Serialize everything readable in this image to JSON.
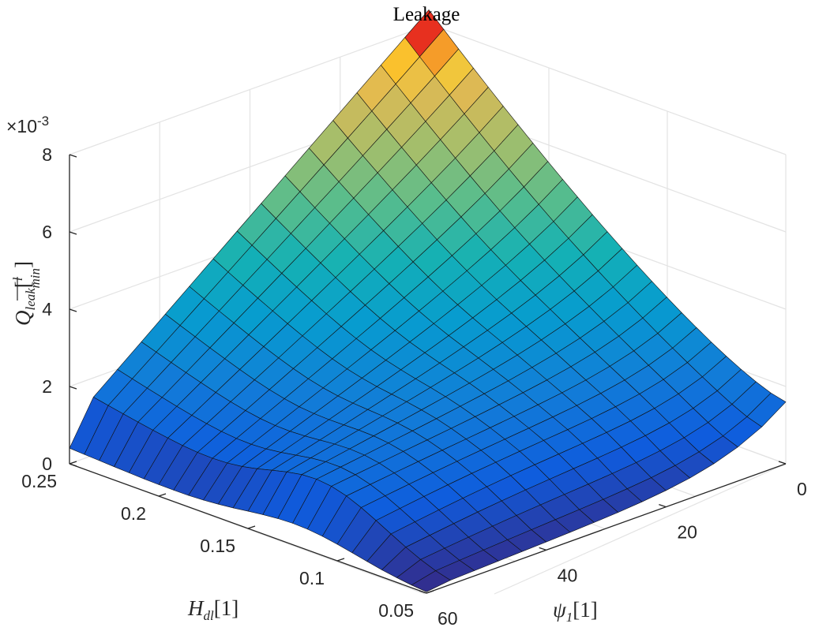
{
  "chart_data": {
    "type": "surface",
    "title": "Leakage",
    "zlabel": "Q_leak [l/min]",
    "zlabel_main": "Q",
    "zlabel_sub": "leak",
    "zlabel_unit_num": "l",
    "zlabel_unit_den": "min",
    "z_exponent": "×10-3",
    "z_exponent_base": "×10",
    "z_exponent_power": "-3",
    "xlabel": "ψ1[1]",
    "xlabel_main": "ψ",
    "xlabel_sub": "1",
    "xlabel_unit": "[1]",
    "ylabel": "H_dl[1]",
    "ylabel_main": "H",
    "ylabel_sub": "dl",
    "ylabel_unit": "[1]",
    "xlim": [
      0,
      60
    ],
    "ylim": [
      0.05,
      0.25
    ],
    "zlim": [
      0,
      0.008
    ],
    "x_ticks": [
      0,
      20,
      40,
      60
    ],
    "x_tick_labels": [
      "0",
      "20",
      "40",
      "60"
    ],
    "y_ticks": [
      0.05,
      0.1,
      0.15,
      0.2,
      0.25
    ],
    "y_tick_labels": [
      "0.05",
      "0.1",
      "0.15",
      "0.2",
      "0.25"
    ],
    "z_ticks": [
      0,
      0.002,
      0.004,
      0.006,
      0.008
    ],
    "z_tick_labels": [
      "0",
      "2",
      "4",
      "6",
      "8"
    ],
    "colormap": "parula",
    "surface": {
      "psi": [
        0,
        4,
        8,
        12,
        16,
        20,
        24,
        28,
        32,
        36,
        40,
        44,
        48,
        52,
        56,
        60
      ],
      "H": [
        0.05,
        0.0583,
        0.0667,
        0.075,
        0.0833,
        0.0917,
        0.1,
        0.1083,
        0.1167,
        0.125,
        0.1333,
        0.1417,
        0.15,
        0.1583,
        0.1667,
        0.175,
        0.1833,
        0.1917,
        0.2,
        0.2083,
        0.2167,
        0.225,
        0.2333,
        0.2417,
        0.25
      ],
      "Q_corner_values": {
        "psi0_H0.05": 0.0016,
        "psi0_H0.25": 0.0084,
        "psi60_H0.05": 0.0,
        "psi60_H0.25": 0.0006
      },
      "Q_peak": 0.0084
    }
  }
}
